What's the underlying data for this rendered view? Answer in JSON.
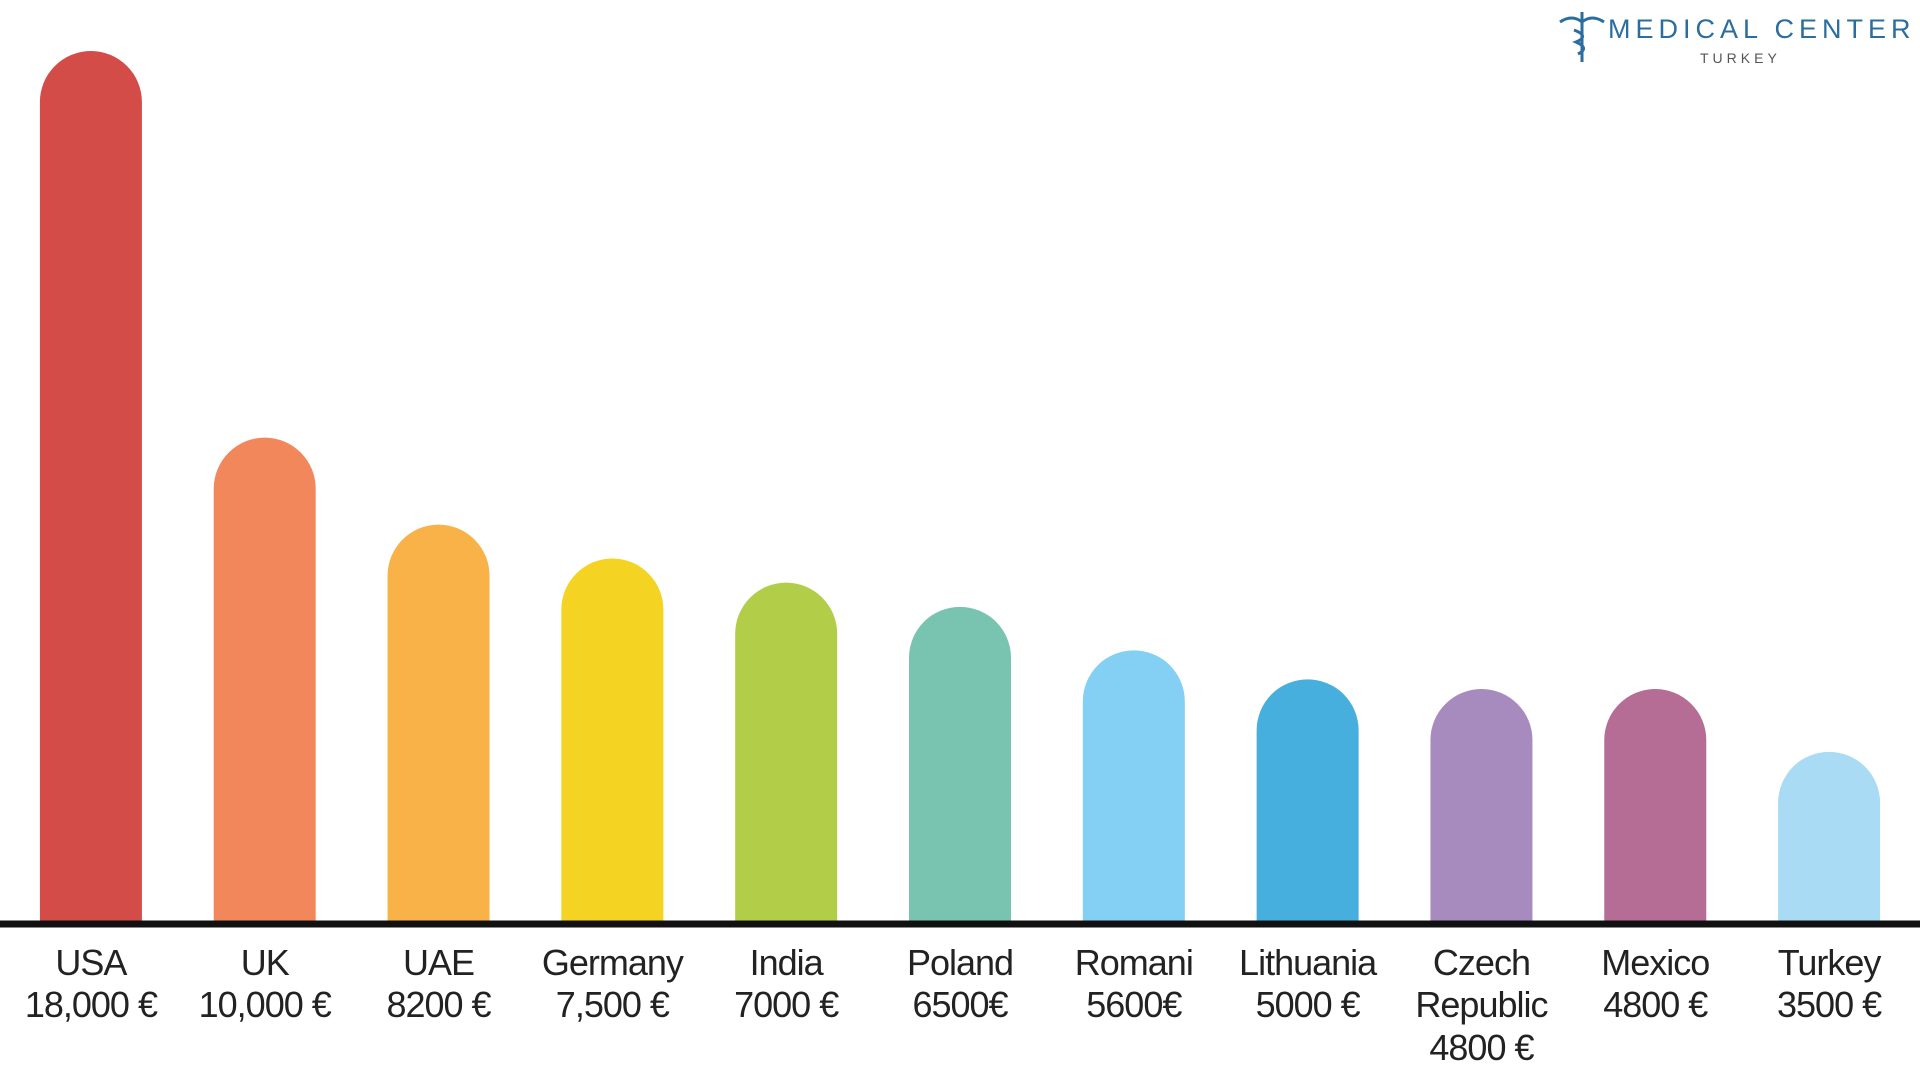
{
  "chart_data": {
    "type": "bar",
    "categories": [
      "USA",
      "UK",
      "UAE",
      "Germany",
      "India",
      "Poland",
      "Romani",
      "Lithuania",
      "Czech Republic",
      "Mexico",
      "Turkey"
    ],
    "values": [
      18000,
      10000,
      8200,
      7500,
      7000,
      6500,
      5600,
      5000,
      4800,
      4800,
      3500
    ],
    "value_labels": [
      "18,000 €",
      "10,000 €",
      "8200 €",
      "7,500 €",
      "7000 €",
      "6500€",
      "5600€",
      "5000 €",
      "4800 €",
      "4800 €",
      "3500 €"
    ],
    "colors": [
      "#d44c47",
      "#f2875c",
      "#f8b247",
      "#f4d322",
      "#b2ce48",
      "#78c4b0",
      "#84cff4",
      "#47afdd",
      "#a88bbe",
      "#b56c95",
      "#a9dbf5"
    ],
    "ylim": [
      0,
      18000
    ]
  },
  "logo": {
    "title": "MEDICAL CENTER",
    "subtitle": "TURKEY"
  }
}
